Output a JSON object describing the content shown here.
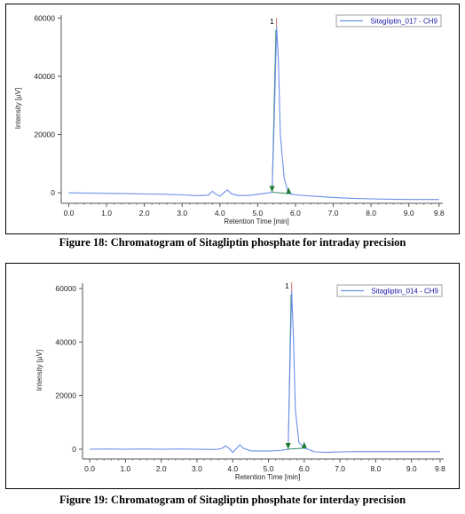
{
  "figures": [
    {
      "caption": "Figure 18: Chromatogram of Sitagliptin phosphate for intraday precision",
      "legend": "Sitagliptin_017 - CH9",
      "ylabel": "Intensity [µV]",
      "xlabel": "Retention Time [min]",
      "peak_label": "1",
      "x_ticks": [
        "0.0",
        "1.0",
        "2.0",
        "3.0",
        "4.0",
        "5.0",
        "6.0",
        "7.0",
        "8.0",
        "9.0",
        "9.8"
      ],
      "y_ticks": [
        "0",
        "20000",
        "40000",
        "60000"
      ]
    },
    {
      "caption": "Figure 19: Chromatogram of Sitagliptin phosphate for interday precision",
      "legend": "Sitagliptin_014 - CH9",
      "ylabel": "Intensity [µV]",
      "xlabel": "Retention Time [min]",
      "peak_label": "1",
      "x_ticks": [
        "0.0",
        "1.0",
        "2.0",
        "3.0",
        "4.0",
        "5.0",
        "6.0",
        "7.0",
        "8.0",
        "9.0",
        "9.8"
      ],
      "y_ticks": [
        "0",
        "20000",
        "40000",
        "60000"
      ]
    }
  ],
  "chart_data": [
    {
      "type": "line",
      "line_color": "#6a8ee6",
      "xlim": [
        -0.2,
        9.9
      ],
      "ylim": [
        -3000,
        61000
      ],
      "x_tick_values": [
        0,
        1,
        2,
        3,
        4,
        5,
        6,
        7,
        8,
        9,
        9.8
      ],
      "y_tick_values": [
        0,
        20000,
        40000,
        60000
      ],
      "legend_position": "top-right",
      "peak": {
        "rt": 5.5,
        "height": 57000,
        "start": 5.38,
        "end": 5.82,
        "start_level": 200,
        "end_level": -300
      },
      "series": [
        {
          "x": [
            0.0,
            0.5,
            1.0,
            1.5,
            2.0,
            2.5,
            3.0,
            3.4,
            3.7,
            3.8,
            3.9,
            4.0,
            4.1,
            4.2,
            4.3,
            4.5,
            4.8,
            5.0,
            5.2,
            5.38,
            5.45,
            5.5,
            5.55,
            5.6,
            5.7,
            5.82,
            6.0,
            6.5,
            7.0,
            7.5,
            8.0,
            8.5,
            9.0,
            9.5,
            9.8
          ],
          "y": [
            0,
            -100,
            -200,
            -300,
            -400,
            -500,
            -700,
            -1000,
            -800,
            500,
            -500,
            -1200,
            0,
            1000,
            -300,
            -1000,
            -900,
            -500,
            -200,
            200,
            30000,
            57000,
            45000,
            20000,
            5000,
            -300,
            -700,
            -1200,
            -1600,
            -1900,
            -2100,
            -2200,
            -2300,
            -2300,
            -2300
          ]
        }
      ]
    },
    {
      "type": "line",
      "line_color": "#6a8ee6",
      "xlim": [
        -0.2,
        9.9
      ],
      "ylim": [
        -3000,
        62000
      ],
      "x_tick_values": [
        0,
        1,
        2,
        3,
        4,
        5,
        6,
        7,
        8,
        9,
        9.8
      ],
      "y_tick_values": [
        0,
        20000,
        40000,
        60000
      ],
      "legend_position": "top-right",
      "peak": {
        "rt": 5.65,
        "height": 59000,
        "start": 5.55,
        "end": 6.0,
        "start_level": 0,
        "end_level": 400
      },
      "series": [
        {
          "x": [
            0.0,
            0.5,
            1.0,
            1.5,
            2.0,
            2.5,
            3.0,
            3.4,
            3.6,
            3.7,
            3.8,
            3.9,
            4.0,
            4.1,
            4.2,
            4.3,
            4.5,
            4.8,
            5.0,
            5.3,
            5.55,
            5.6,
            5.65,
            5.7,
            5.75,
            5.85,
            6.0,
            6.3,
            6.6,
            7.0,
            7.5,
            8.0,
            8.5,
            9.0,
            9.5,
            9.8
          ],
          "y": [
            0,
            50,
            0,
            50,
            0,
            50,
            0,
            -100,
            0,
            300,
            1200,
            300,
            -1200,
            200,
            1600,
            300,
            -600,
            -700,
            -700,
            -500,
            0,
            30000,
            59000,
            40000,
            15000,
            2500,
            400,
            -1000,
            -1200,
            -1000,
            -900,
            -900,
            -900,
            -900,
            -900,
            -900
          ]
        }
      ]
    }
  ]
}
